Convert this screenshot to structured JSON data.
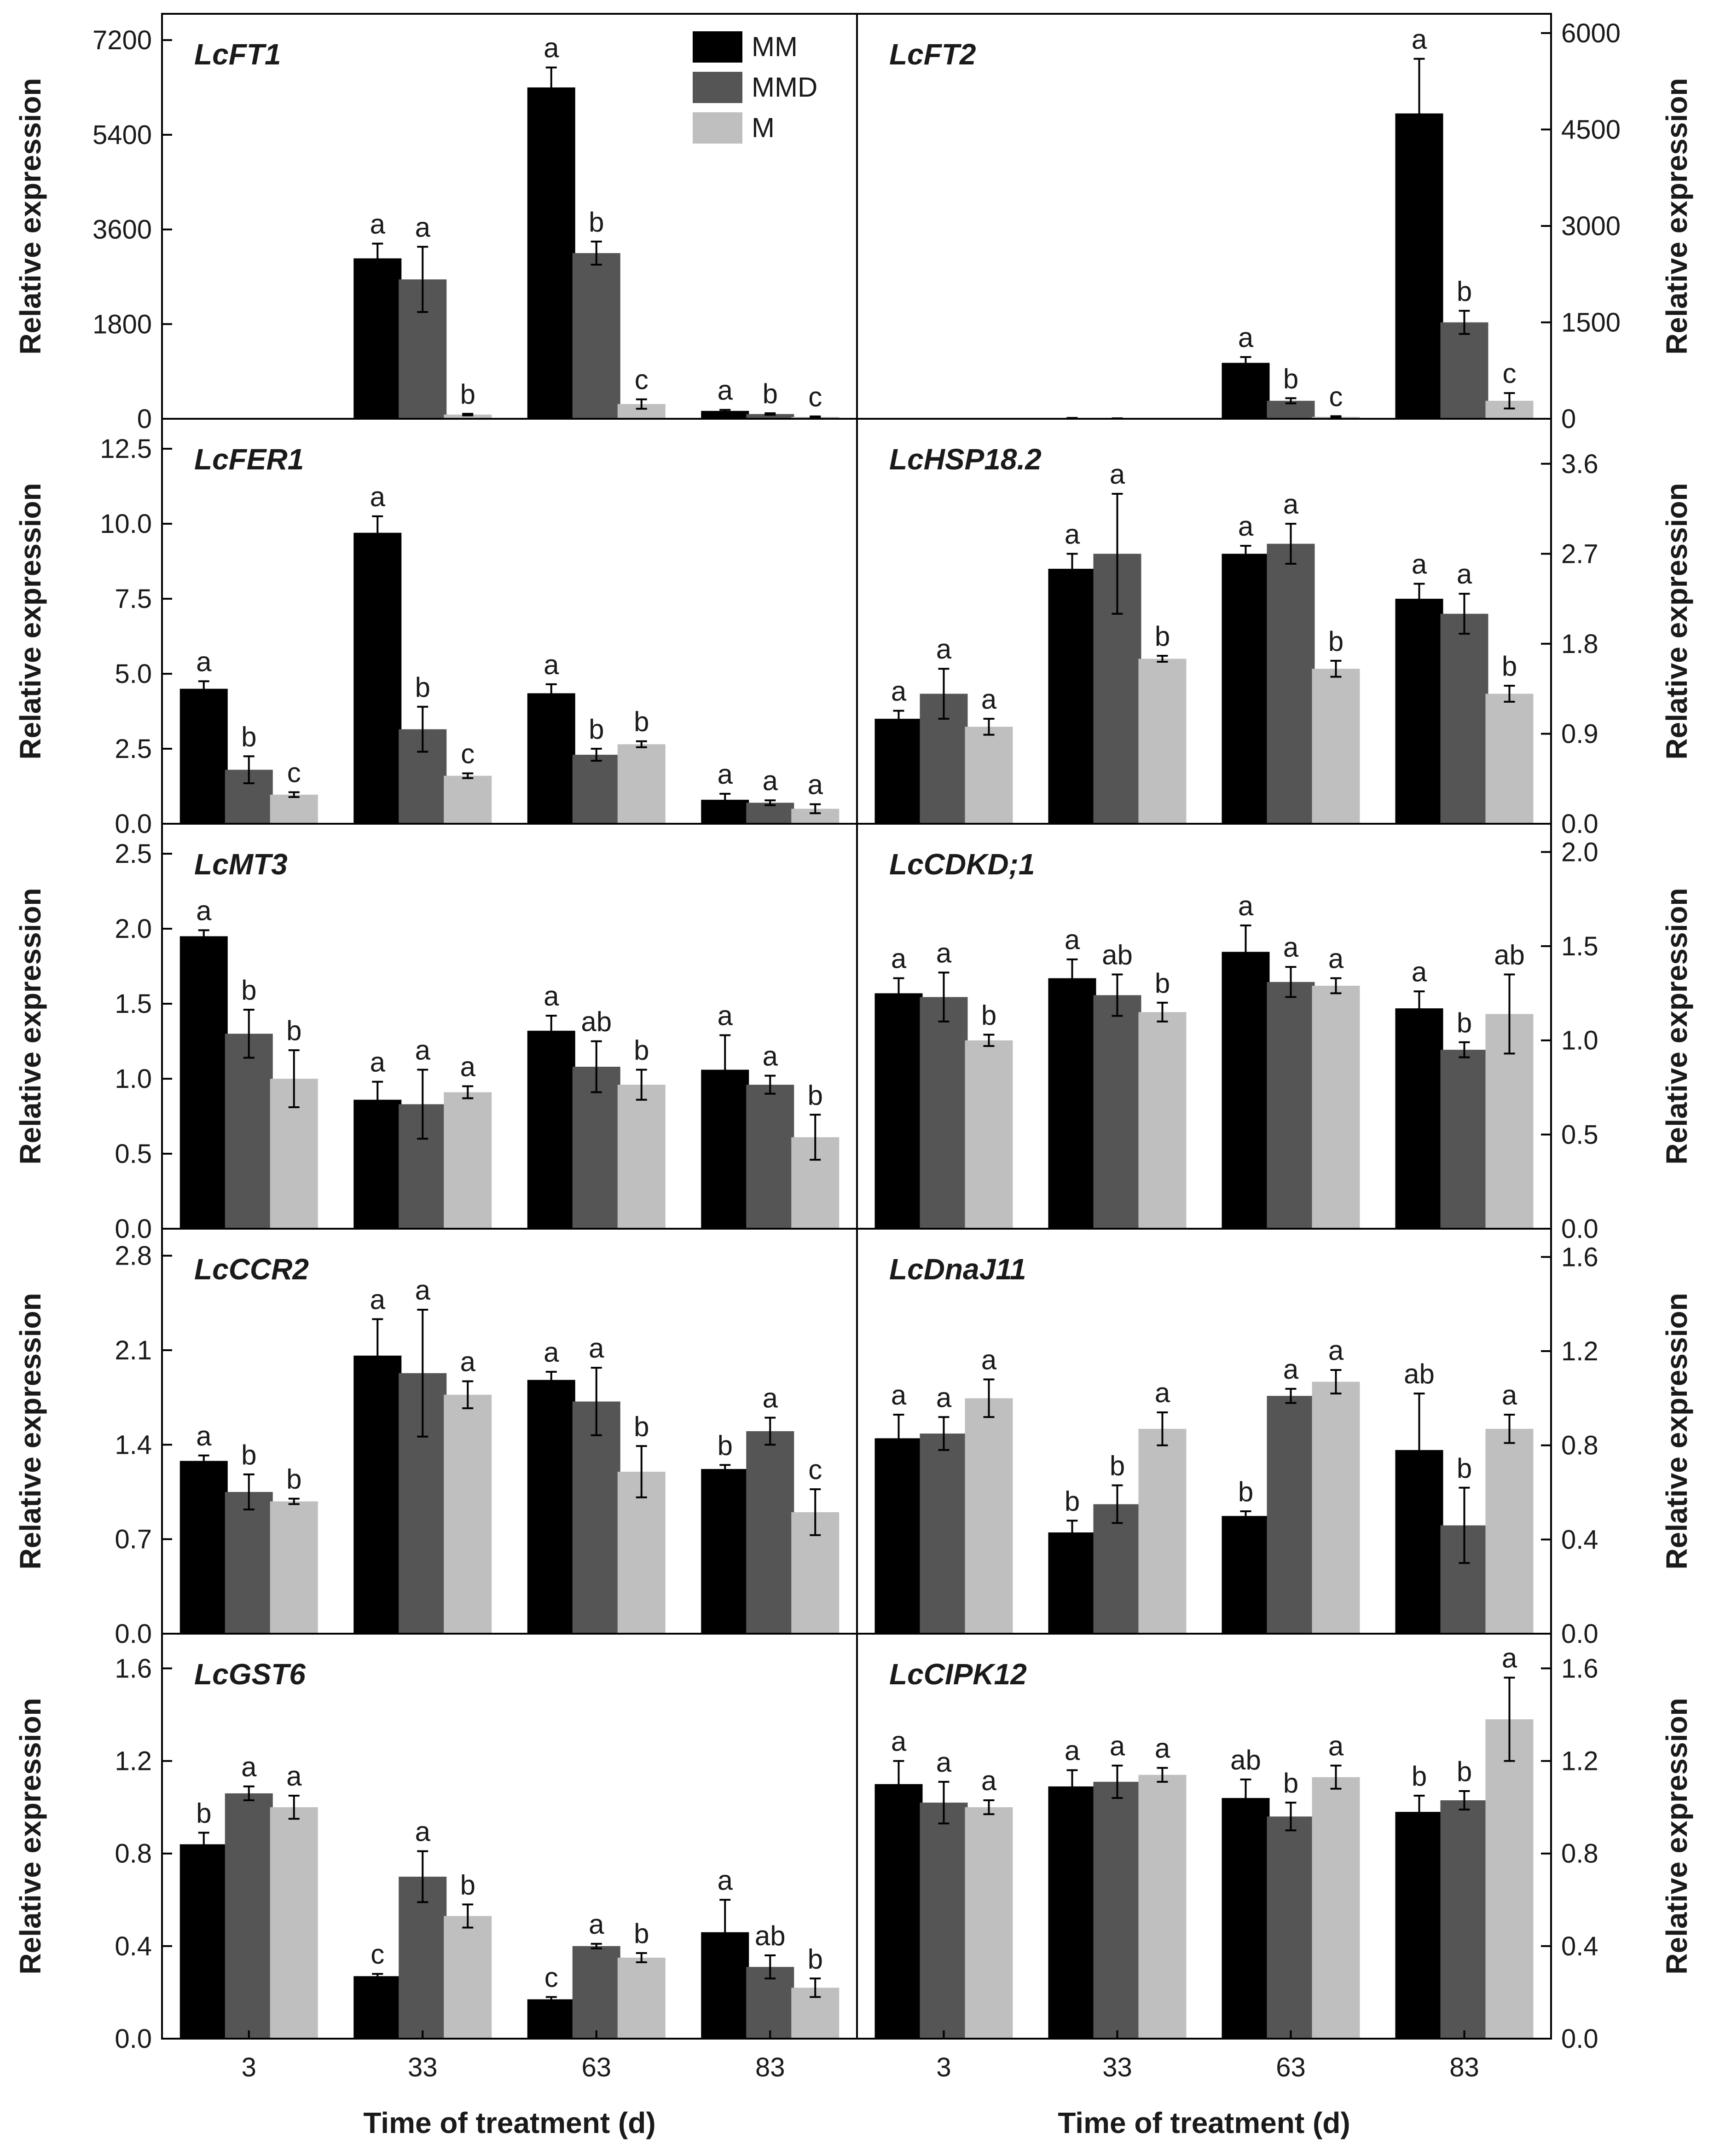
{
  "chart_data": {
    "type": "bar",
    "x_categories": [
      "3",
      "33",
      "63",
      "83"
    ],
    "xlabel": "Time of treatment (d)",
    "ylabel": "Relative expression",
    "legend": [
      {
        "name": "MM",
        "color": "#000000"
      },
      {
        "name": "MMD",
        "color": "#555555"
      },
      {
        "name": "M",
        "color": "#bfbfbf"
      }
    ],
    "panels": [
      {
        "gene": "LcFT1",
        "ylim": [
          0,
          7700
        ],
        "ticks": [
          "0",
          "1800",
          "3600",
          "5400",
          "7200"
        ],
        "series": {
          "MM": [
            0,
            3050,
            6300,
            150
          ],
          "MMD": [
            0,
            2650,
            3150,
            90
          ],
          "M": [
            0,
            80,
            280,
            35
          ]
        },
        "errors": {
          "MM": [
            0,
            280,
            380,
            20
          ],
          "MMD": [
            0,
            620,
            220,
            15
          ],
          "M": [
            0,
            15,
            90,
            10
          ]
        },
        "letters": {
          "MM": [
            "",
            "a",
            "a",
            "a"
          ],
          "MMD": [
            "",
            "a",
            "b",
            "b"
          ],
          "M": [
            "",
            "b",
            "c",
            "c"
          ]
        }
      },
      {
        "gene": "LcFT2",
        "ylim": [
          0,
          6300
        ],
        "ticks": [
          "0",
          "1500",
          "3000",
          "4500",
          "6000"
        ],
        "series": {
          "MM": [
            0,
            10,
            870,
            4750
          ],
          "MMD": [
            0,
            5,
            280,
            1500
          ],
          "M": [
            0,
            0,
            30,
            280
          ]
        },
        "errors": {
          "MM": [
            0,
            3,
            90,
            850
          ],
          "MMD": [
            0,
            2,
            40,
            180
          ],
          "M": [
            0,
            0,
            10,
            120
          ]
        },
        "letters": {
          "MM": [
            "",
            "",
            "a",
            "a"
          ],
          "MMD": [
            "",
            "",
            "b",
            "b"
          ],
          "M": [
            "",
            "",
            "c",
            "c"
          ]
        }
      },
      {
        "gene": "LcFER1",
        "ylim": [
          0,
          13.5
        ],
        "ticks": [
          "0.0",
          "2.5",
          "5.0",
          "7.5",
          "10.0",
          "12.5"
        ],
        "series": {
          "MM": [
            4.5,
            9.7,
            4.35,
            0.8
          ],
          "MMD": [
            1.8,
            3.15,
            2.3,
            0.7
          ],
          "M": [
            0.97,
            1.6,
            2.65,
            0.5
          ]
        },
        "errors": {
          "MM": [
            0.25,
            0.55,
            0.3,
            0.2
          ],
          "MMD": [
            0.45,
            0.75,
            0.2,
            0.08
          ],
          "M": [
            0.08,
            0.08,
            0.1,
            0.15
          ]
        },
        "letters": {
          "MM": [
            "a",
            "a",
            "a",
            "a"
          ],
          "MMD": [
            "b",
            "b",
            "b",
            "a"
          ],
          "M": [
            "c",
            "c",
            "b",
            "a"
          ]
        }
      },
      {
        "gene": "LcHSP18.2",
        "ylim": [
          0,
          4.05
        ],
        "ticks": [
          "0.0",
          "0.9",
          "1.8",
          "2.7",
          "3.6"
        ],
        "series": {
          "MM": [
            1.05,
            2.55,
            2.7,
            2.25
          ],
          "MMD": [
            1.3,
            2.7,
            2.8,
            2.1
          ],
          "M": [
            0.97,
            1.65,
            1.55,
            1.3
          ]
        },
        "errors": {
          "MM": [
            0.08,
            0.15,
            0.08,
            0.15
          ],
          "MMD": [
            0.25,
            0.6,
            0.2,
            0.2
          ],
          "M": [
            0.08,
            0.03,
            0.08,
            0.08
          ]
        },
        "letters": {
          "MM": [
            "a",
            "a",
            "a",
            "a"
          ],
          "MMD": [
            "a",
            "a",
            "a",
            "a"
          ],
          "M": [
            "a",
            "b",
            "b",
            "b"
          ]
        }
      },
      {
        "gene": "LcMT3",
        "ylim": [
          0,
          2.7
        ],
        "ticks": [
          "0.0",
          "0.5",
          "1.0",
          "1.5",
          "2.0",
          "2.5"
        ],
        "series": {
          "MM": [
            1.95,
            0.86,
            1.32,
            1.06
          ],
          "MMD": [
            1.3,
            0.83,
            1.08,
            0.96
          ],
          "M": [
            1.0,
            0.91,
            0.96,
            0.61
          ]
        },
        "errors": {
          "MM": [
            0.04,
            0.12,
            0.1,
            0.23
          ],
          "MMD": [
            0.16,
            0.23,
            0.17,
            0.06
          ],
          "M": [
            0.19,
            0.04,
            0.1,
            0.15
          ]
        },
        "letters": {
          "MM": [
            "a",
            "a",
            "a",
            "a"
          ],
          "MMD": [
            "b",
            "a",
            "ab",
            "a"
          ],
          "M": [
            "b",
            "a",
            "b",
            "b"
          ]
        }
      },
      {
        "gene": "LcCDKD;1",
        "ylim": [
          0,
          2.15
        ],
        "ticks": [
          "0.0",
          "0.5",
          "1.0",
          "1.5",
          "2.0"
        ],
        "series": {
          "MM": [
            1.25,
            1.33,
            1.47,
            1.17
          ],
          "MMD": [
            1.23,
            1.24,
            1.31,
            0.95
          ],
          "M": [
            1.0,
            1.15,
            1.29,
            1.14
          ]
        },
        "errors": {
          "MM": [
            0.08,
            0.1,
            0.14,
            0.09
          ],
          "MMD": [
            0.13,
            0.11,
            0.08,
            0.04
          ],
          "M": [
            0.03,
            0.05,
            0.04,
            0.21
          ]
        },
        "letters": {
          "MM": [
            "a",
            "a",
            "a",
            "a"
          ],
          "MMD": [
            "a",
            "ab",
            "a",
            "b"
          ],
          "M": [
            "b",
            "b",
            "a",
            "ab"
          ]
        }
      },
      {
        "gene": "LcCCR2",
        "ylim": [
          0,
          3.0
        ],
        "ticks": [
          "0.0",
          "0.7",
          "1.4",
          "2.1",
          "2.8"
        ],
        "series": {
          "MM": [
            1.28,
            2.06,
            1.88,
            1.22
          ],
          "MMD": [
            1.05,
            1.93,
            1.72,
            1.5
          ],
          "M": [
            0.98,
            1.77,
            1.2,
            0.9
          ]
        },
        "errors": {
          "MM": [
            0.04,
            0.27,
            0.06,
            0.03
          ],
          "MMD": [
            0.13,
            0.47,
            0.25,
            0.1
          ],
          "M": [
            0.02,
            0.1,
            0.19,
            0.17
          ]
        },
        "letters": {
          "MM": [
            "a",
            "a",
            "a",
            "b"
          ],
          "MMD": [
            "b",
            "a",
            "a",
            "a"
          ],
          "M": [
            "b",
            "a",
            "b",
            "c"
          ]
        }
      },
      {
        "gene": "LcDnaJ11",
        "ylim": [
          0,
          1.72
        ],
        "ticks": [
          "0.0",
          "0.4",
          "0.8",
          "1.2",
          "1.6"
        ],
        "series": {
          "MM": [
            0.83,
            0.43,
            0.5,
            0.78
          ],
          "MMD": [
            0.85,
            0.55,
            1.01,
            0.46
          ],
          "M": [
            1.0,
            0.87,
            1.07,
            0.87
          ]
        },
        "errors": {
          "MM": [
            0.1,
            0.05,
            0.02,
            0.24
          ],
          "MMD": [
            0.07,
            0.08,
            0.03,
            0.16
          ],
          "M": [
            0.08,
            0.07,
            0.05,
            0.06
          ]
        },
        "letters": {
          "MM": [
            "a",
            "b",
            "b",
            "ab"
          ],
          "MMD": [
            "a",
            "b",
            "a",
            "b"
          ],
          "M": [
            "a",
            "a",
            "a",
            "a"
          ]
        }
      },
      {
        "gene": "LcGST6",
        "ylim": [
          0,
          1.75
        ],
        "ticks": [
          "0.0",
          "0.4",
          "0.8",
          "1.2",
          "1.6"
        ],
        "series": {
          "MM": [
            0.84,
            0.27,
            0.17,
            0.46
          ],
          "MMD": [
            1.06,
            0.7,
            0.4,
            0.31
          ],
          "M": [
            1.0,
            0.53,
            0.35,
            0.22
          ]
        },
        "errors": {
          "MM": [
            0.05,
            0.01,
            0.01,
            0.14
          ],
          "MMD": [
            0.03,
            0.11,
            0.01,
            0.05
          ],
          "M": [
            0.05,
            0.05,
            0.02,
            0.04
          ]
        },
        "letters": {
          "MM": [
            "b",
            "c",
            "c",
            "a"
          ],
          "MMD": [
            "a",
            "a",
            "a",
            "ab"
          ],
          "M": [
            "a",
            "b",
            "b",
            "b"
          ]
        }
      },
      {
        "gene": "LcCIPK12",
        "ylim": [
          0,
          1.75
        ],
        "ticks": [
          "0.0",
          "0.4",
          "0.8",
          "1.2",
          "1.6"
        ],
        "series": {
          "MM": [
            1.1,
            1.09,
            1.04,
            0.98
          ],
          "MMD": [
            1.02,
            1.11,
            0.96,
            1.03
          ],
          "M": [
            1.0,
            1.14,
            1.13,
            1.38
          ]
        },
        "errors": {
          "MM": [
            0.1,
            0.07,
            0.08,
            0.07
          ],
          "MMD": [
            0.09,
            0.07,
            0.06,
            0.04
          ],
          "M": [
            0.03,
            0.03,
            0.05,
            0.18
          ]
        },
        "letters": {
          "MM": [
            "a",
            "a",
            "ab",
            "b"
          ],
          "MMD": [
            "a",
            "a",
            "b",
            "b"
          ],
          "M": [
            "a",
            "a",
            "a",
            "a"
          ]
        }
      }
    ]
  }
}
